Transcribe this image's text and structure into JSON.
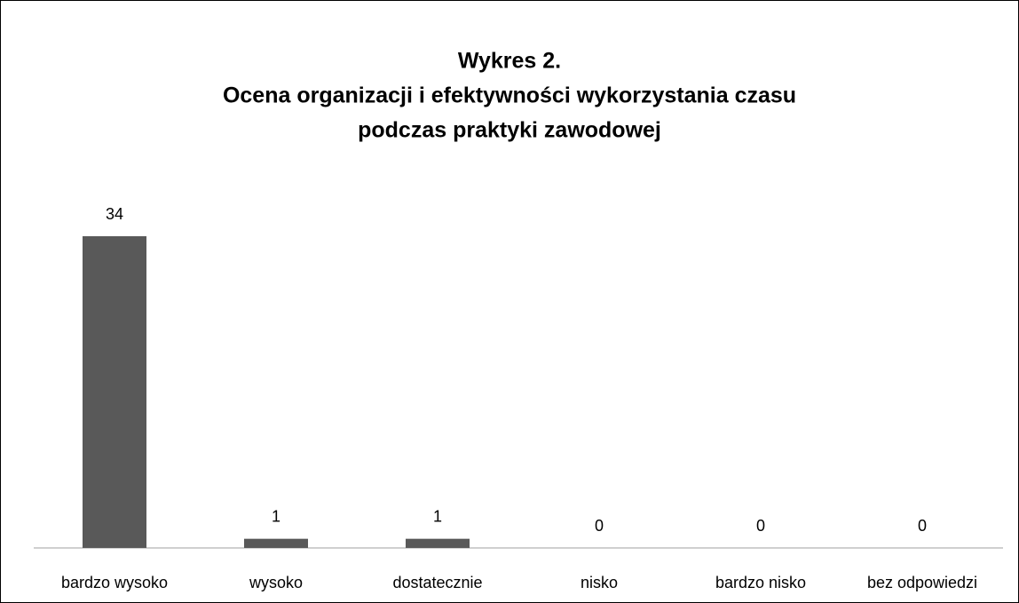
{
  "chart_data": {
    "type": "bar",
    "title": [
      "Wykres 2.",
      "Ocena organizacji i efektywności wykorzystania czasu",
      "podczas praktyki zawodowej"
    ],
    "categories": [
      "bardzo wysoko",
      "wysoko",
      "dostatecznie",
      "nisko",
      "bardzo nisko",
      "bez odpowiedzi"
    ],
    "values": [
      34,
      1,
      1,
      0,
      0,
      0
    ],
    "color": "#595959",
    "ylim": [
      0,
      34
    ]
  }
}
